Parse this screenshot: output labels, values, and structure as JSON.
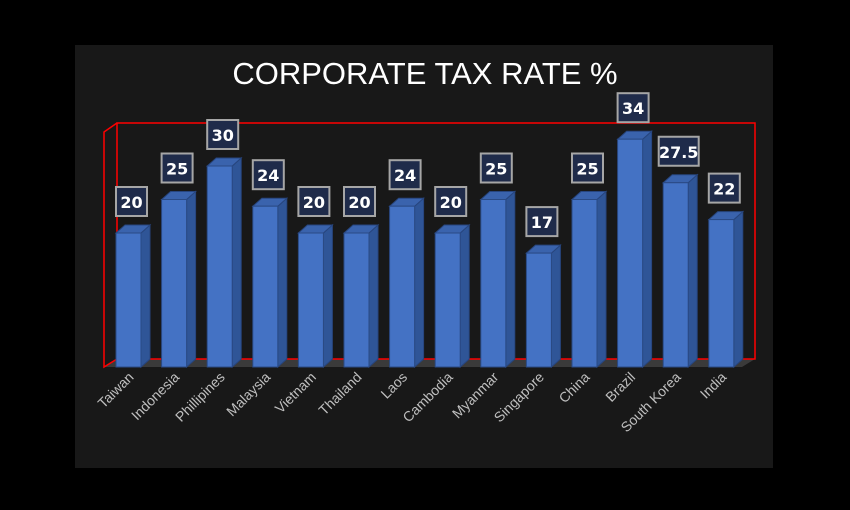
{
  "chart_data": {
    "type": "bar",
    "title": "CORPORATE TAX RATE %",
    "xlabel": "",
    "ylabel": "",
    "ylim": [
      0,
      35
    ],
    "grid": false,
    "legend": "none",
    "categories": [
      "Taiwan",
      "Indonesia",
      "Phillipines",
      "Malaysia",
      "Vietnam",
      "Thailand",
      "Laos",
      "Cambodia",
      "Myanmar",
      "Singapore",
      "China",
      "Brazil",
      "South Korea",
      "India"
    ],
    "values": [
      20,
      25,
      30,
      24,
      20,
      20,
      24,
      20,
      25,
      17,
      25,
      34,
      27.5,
      22
    ],
    "data_labels": [
      "20",
      "25",
      "30",
      "24",
      "20",
      "20",
      "24",
      "20",
      "25",
      "17",
      "25",
      "34",
      "27.5",
      "22"
    ],
    "colors": {
      "bar": "#4472c4",
      "bar_side": "#2f5597",
      "bar_top": "#3a63ad",
      "frame": "#ff0000",
      "label_bg": "#1f2b4a",
      "label_border": "#a6a6a6",
      "text": "#bfbfbf"
    }
  }
}
